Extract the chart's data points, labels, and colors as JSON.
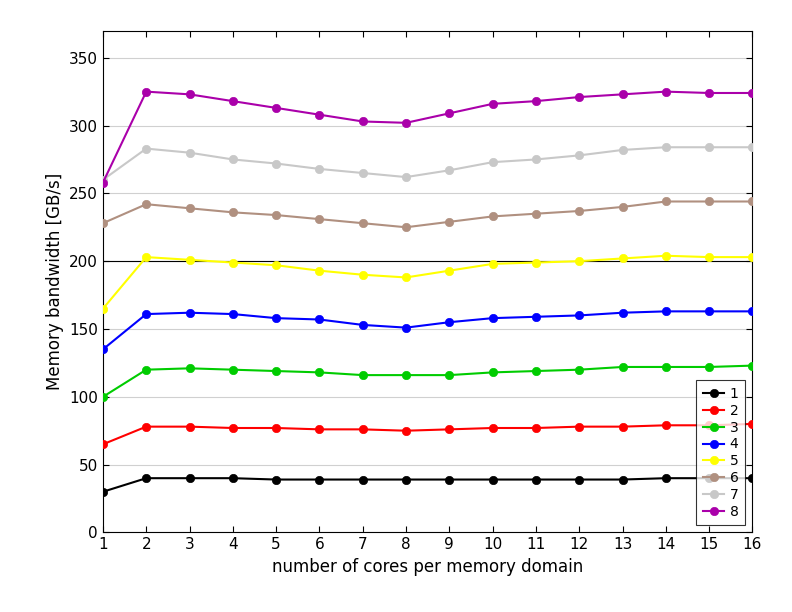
{
  "x": [
    1,
    2,
    3,
    4,
    5,
    6,
    7,
    8,
    9,
    10,
    11,
    12,
    13,
    14,
    15,
    16
  ],
  "series": {
    "1": [
      30,
      40,
      40,
      40,
      39,
      39,
      39,
      39,
      39,
      39,
      39,
      39,
      39,
      40,
      40,
      40
    ],
    "2": [
      65,
      78,
      78,
      77,
      77,
      76,
      76,
      75,
      76,
      77,
      77,
      78,
      78,
      79,
      79,
      80
    ],
    "3": [
      100,
      120,
      121,
      120,
      119,
      118,
      116,
      116,
      116,
      118,
      119,
      120,
      122,
      122,
      122,
      123
    ],
    "4": [
      135,
      161,
      162,
      161,
      158,
      157,
      153,
      151,
      155,
      158,
      159,
      160,
      162,
      163,
      163,
      163
    ],
    "5": [
      165,
      203,
      201,
      199,
      197,
      193,
      190,
      188,
      193,
      198,
      199,
      200,
      202,
      204,
      203,
      203
    ],
    "6": [
      228,
      242,
      239,
      236,
      234,
      231,
      228,
      225,
      229,
      233,
      235,
      237,
      240,
      244,
      244,
      244
    ],
    "7": [
      260,
      283,
      280,
      275,
      272,
      268,
      265,
      262,
      267,
      273,
      275,
      278,
      282,
      284,
      284,
      284
    ],
    "8": [
      258,
      325,
      323,
      318,
      313,
      308,
      303,
      302,
      309,
      316,
      318,
      321,
      323,
      325,
      324,
      324
    ]
  },
  "colors": {
    "1": "#000000",
    "2": "#ff0000",
    "3": "#00cc00",
    "4": "#0000ff",
    "5": "#ffff00",
    "6": "#b09080",
    "7": "#c8c8c8",
    "8": "#aa00aa"
  },
  "xlabel": "number of cores per memory domain",
  "ylabel": "Memory bandwidth [GB/s]",
  "xlim": [
    1,
    16
  ],
  "ylim": [
    0,
    370
  ],
  "yticks": [
    0,
    50,
    100,
    150,
    200,
    250,
    300,
    350
  ],
  "xticks": [
    1,
    2,
    3,
    4,
    5,
    6,
    7,
    8,
    9,
    10,
    11,
    12,
    13,
    14,
    15,
    16
  ],
  "figsize": [
    7.92,
    6.12
  ],
  "dpi": 100,
  "linewidth": 1.5,
  "markersize": 6,
  "marker": "o",
  "markeredgewidth": 0.5,
  "legend_loc": "lower right",
  "legend_fontsize": 10,
  "axis_fontsize": 12,
  "tick_fontsize": 11,
  "bg_color": "#ffffff",
  "grid_color": "#d0d0d0",
  "hline_y": 200,
  "hline_color": "#000000",
  "hline_lw": 0.8
}
